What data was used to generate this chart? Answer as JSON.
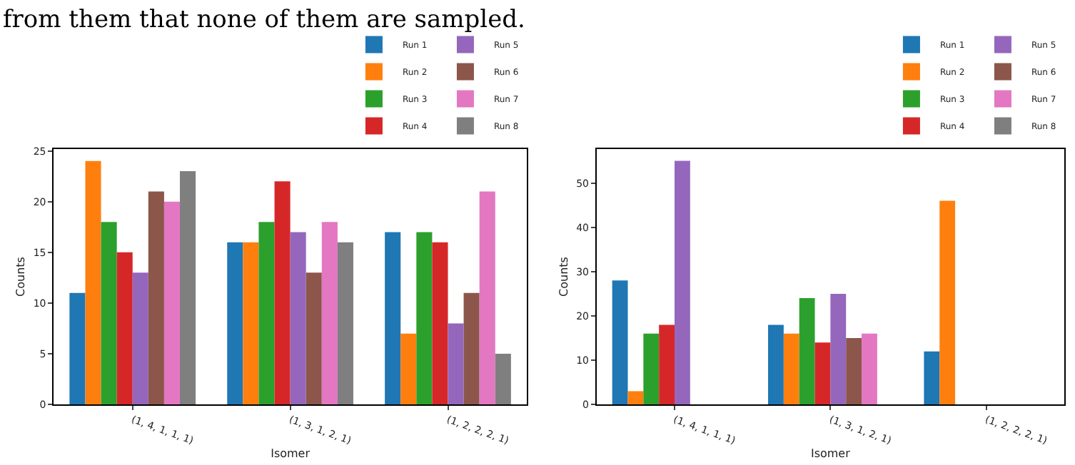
{
  "chart_data": [
    {
      "type": "bar",
      "annotations": [
        "from them that none of them are sampled."
      ],
      "xlabel": "Isomer",
      "ylabel": "Counts",
      "categories": [
        "(1, 4, 1, 1, 1)",
        "(1, 3, 1, 2, 1)",
        "(1, 2, 2, 2, 1)"
      ],
      "ylim": [
        0,
        25.2
      ],
      "yticks": [
        0,
        5,
        10,
        15,
        20,
        25
      ],
      "grid": false,
      "legend": "top right",
      "series": [
        {
          "name": "Run 1",
          "color": "#1f77b4",
          "values": [
            11,
            16,
            17
          ]
        },
        {
          "name": "Run 2",
          "color": "#ff7f0e",
          "values": [
            24,
            16,
            7
          ]
        },
        {
          "name": "Run 3",
          "color": "#2ca02c",
          "values": [
            18,
            18,
            17
          ]
        },
        {
          "name": "Run 4",
          "color": "#d62728",
          "values": [
            15,
            22,
            16
          ]
        },
        {
          "name": "Run 5",
          "color": "#9467bd",
          "values": [
            13,
            17,
            8
          ]
        },
        {
          "name": "Run 6",
          "color": "#8c564b",
          "values": [
            21,
            13,
            11
          ]
        },
        {
          "name": "Run 7",
          "color": "#e377c2",
          "values": [
            20,
            18,
            21
          ]
        },
        {
          "name": "Run 8",
          "color": "#7f7f7f",
          "values": [
            23,
            16,
            5
          ]
        }
      ]
    },
    {
      "type": "bar",
      "xlabel": "Isomer",
      "ylabel": "Counts",
      "categories": [
        "(1, 4, 1, 1, 1)",
        "(1, 3, 1, 2, 1)",
        "(1, 2, 2, 2, 1)"
      ],
      "ylim": [
        0,
        57.7
      ],
      "yticks": [
        0,
        10,
        20,
        30,
        40,
        50
      ],
      "grid": false,
      "legend": "top right",
      "series": [
        {
          "name": "Run 1",
          "color": "#1f77b4",
          "values": [
            28,
            18,
            12
          ]
        },
        {
          "name": "Run 2",
          "color": "#ff7f0e",
          "values": [
            3,
            16,
            46
          ]
        },
        {
          "name": "Run 3",
          "color": "#2ca02c",
          "values": [
            16,
            24,
            0
          ]
        },
        {
          "name": "Run 4",
          "color": "#d62728",
          "values": [
            18,
            14,
            0
          ]
        },
        {
          "name": "Run 5",
          "color": "#9467bd",
          "values": [
            55,
            25,
            0
          ]
        },
        {
          "name": "Run 6",
          "color": "#8c564b",
          "values": [
            0,
            15,
            0
          ]
        },
        {
          "name": "Run 7",
          "color": "#e377c2",
          "values": [
            0,
            16,
            0
          ]
        },
        {
          "name": "Run 8",
          "color": "#7f7f7f",
          "values": [
            0,
            0,
            0
          ]
        }
      ]
    }
  ]
}
